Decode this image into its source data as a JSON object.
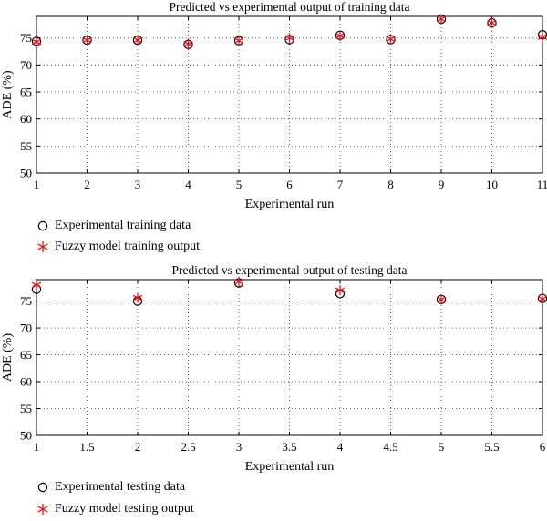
{
  "chart_data": [
    {
      "type": "scatter",
      "title": "Predicted vs experimental output of training data",
      "xlabel": "Experimental run",
      "ylabel": "ADE (%)",
      "xlim": [
        1,
        11
      ],
      "ylim": [
        50,
        79
      ],
      "xticks": [
        "1",
        "2",
        "3",
        "4",
        "5",
        "6",
        "7",
        "8",
        "9",
        "10",
        "11"
      ],
      "yticks": [
        "50",
        "55",
        "60",
        "65",
        "70",
        "75"
      ],
      "grid": true,
      "legend_placement": "below",
      "series": [
        {
          "name": "Experimental training data",
          "marker": "circle",
          "color": "#000000",
          "x": [
            1,
            2,
            3,
            4,
            5,
            6,
            7,
            8,
            9,
            10,
            11
          ],
          "y": [
            74.4,
            74.6,
            74.6,
            73.8,
            74.5,
            74.7,
            75.5,
            74.7,
            78.5,
            77.8,
            75.6
          ]
        },
        {
          "name": "Fuzzy model training output",
          "marker": "asterisk",
          "color": "#e8141c",
          "x": [
            1,
            2,
            3,
            4,
            5,
            6,
            7,
            8,
            9,
            10,
            11
          ],
          "y": [
            74.3,
            74.6,
            74.6,
            73.9,
            74.5,
            75.0,
            75.4,
            74.8,
            78.5,
            77.8,
            75.2
          ]
        }
      ]
    },
    {
      "type": "scatter",
      "title": "Predicted vs experimental output of testing data",
      "xlabel": "Experimental run",
      "ylabel": "ADE (%)",
      "xlim": [
        1,
        6
      ],
      "ylim": [
        50,
        79
      ],
      "xticks": [
        "1",
        "1.5",
        "2",
        "2.5",
        "3",
        "3.5",
        "4",
        "4.5",
        "5",
        "5.5",
        "6"
      ],
      "yticks": [
        "50",
        "55",
        "60",
        "65",
        "70",
        "75"
      ],
      "grid": true,
      "legend_placement": "below",
      "series": [
        {
          "name": "Experimental testing data",
          "marker": "circle",
          "color": "#000000",
          "x": [
            1,
            2,
            3,
            4,
            5,
            6
          ],
          "y": [
            77.2,
            75.0,
            78.4,
            76.4,
            75.3,
            75.5
          ]
        },
        {
          "name": "Fuzzy model testing output",
          "marker": "asterisk",
          "color": "#e8141c",
          "x": [
            1,
            2,
            3,
            4,
            5,
            6
          ],
          "y": [
            78.0,
            75.6,
            78.6,
            77.0,
            75.3,
            75.4
          ]
        }
      ]
    }
  ]
}
